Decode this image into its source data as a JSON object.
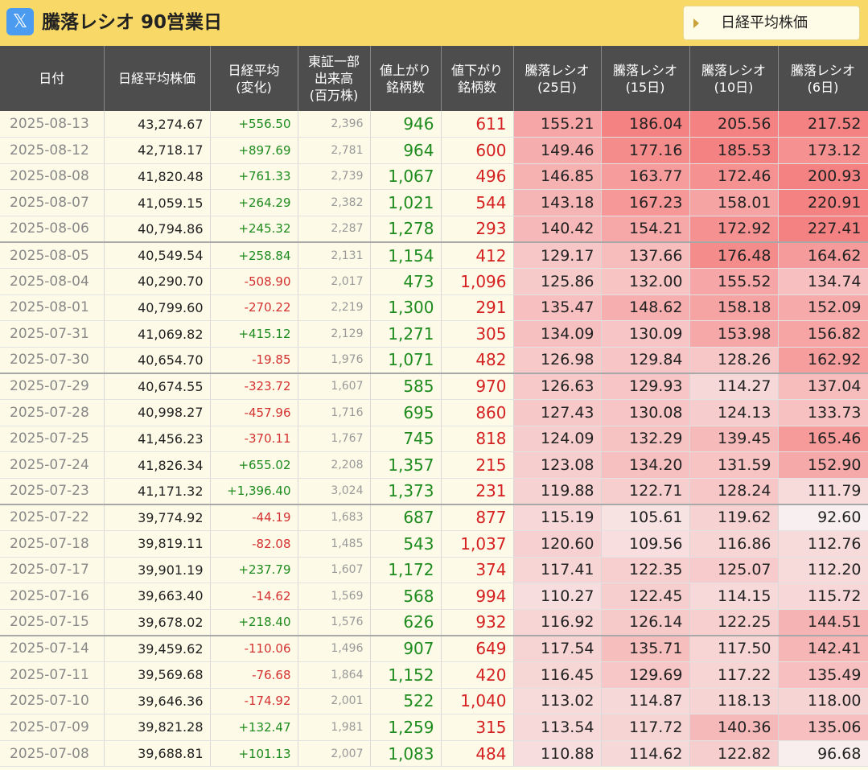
{
  "header": {
    "logo_icon": "x-logo-icon",
    "logo_glyph": "𝕏",
    "title": "騰落レシオ 90営業日",
    "nav_button_label": "日経平均株価"
  },
  "columns": [
    "日付",
    "日経平均株価",
    "日経平均\n(変化)",
    "東証一部\n出来高\n(百万株)",
    "値上がり\n銘柄数",
    "値下がり\n銘柄数",
    "騰落レシオ\n(25日)",
    "騰落レシオ\n(15日)",
    "騰落レシオ\n(10日)",
    "騰落レシオ\n(6日)"
  ],
  "colors": {
    "header_bg": "#4d4d4d",
    "topbar_bg": "#f8d967",
    "page_bg": "#fdfbe8",
    "up": "#1e8b1e",
    "down": "#d42020"
  },
  "rows": [
    {
      "date": "2025-08-13",
      "nikkei": "43,274.67",
      "change": "+556.50",
      "volume": "2,396",
      "up": "946",
      "down": "611",
      "r25": "155.21",
      "r15": "186.04",
      "r10": "205.56",
      "r6": "217.52"
    },
    {
      "date": "2025-08-12",
      "nikkei": "42,718.17",
      "change": "+897.69",
      "volume": "2,781",
      "up": "964",
      "down": "600",
      "r25": "149.46",
      "r15": "177.16",
      "r10": "185.53",
      "r6": "173.12"
    },
    {
      "date": "2025-08-08",
      "nikkei": "41,820.48",
      "change": "+761.33",
      "volume": "2,739",
      "up": "1,067",
      "down": "496",
      "r25": "146.85",
      "r15": "163.77",
      "r10": "172.46",
      "r6": "200.93"
    },
    {
      "date": "2025-08-07",
      "nikkei": "41,059.15",
      "change": "+264.29",
      "volume": "2,382",
      "up": "1,021",
      "down": "544",
      "r25": "143.18",
      "r15": "167.23",
      "r10": "158.01",
      "r6": "220.91"
    },
    {
      "date": "2025-08-06",
      "nikkei": "40,794.86",
      "change": "+245.32",
      "volume": "2,287",
      "up": "1,278",
      "down": "293",
      "r25": "140.42",
      "r15": "154.21",
      "r10": "172.92",
      "r6": "227.41"
    },
    {
      "date": "2025-08-05",
      "nikkei": "40,549.54",
      "change": "+258.84",
      "volume": "2,131",
      "up": "1,154",
      "down": "412",
      "r25": "129.17",
      "r15": "137.66",
      "r10": "176.48",
      "r6": "164.62"
    },
    {
      "date": "2025-08-04",
      "nikkei": "40,290.70",
      "change": "-508.90",
      "volume": "2,017",
      "up": "473",
      "down": "1,096",
      "r25": "125.86",
      "r15": "132.00",
      "r10": "155.52",
      "r6": "134.74"
    },
    {
      "date": "2025-08-01",
      "nikkei": "40,799.60",
      "change": "-270.22",
      "volume": "2,219",
      "up": "1,300",
      "down": "291",
      "r25": "135.47",
      "r15": "148.62",
      "r10": "158.18",
      "r6": "152.09"
    },
    {
      "date": "2025-07-31",
      "nikkei": "41,069.82",
      "change": "+415.12",
      "volume": "2,129",
      "up": "1,271",
      "down": "305",
      "r25": "134.09",
      "r15": "130.09",
      "r10": "153.98",
      "r6": "156.82"
    },
    {
      "date": "2025-07-30",
      "nikkei": "40,654.70",
      "change": "-19.85",
      "volume": "1,976",
      "up": "1,071",
      "down": "482",
      "r25": "126.98",
      "r15": "129.84",
      "r10": "128.26",
      "r6": "162.92"
    },
    {
      "date": "2025-07-29",
      "nikkei": "40,674.55",
      "change": "-323.72",
      "volume": "1,607",
      "up": "585",
      "down": "970",
      "r25": "126.63",
      "r15": "129.93",
      "r10": "114.27",
      "r6": "137.04"
    },
    {
      "date": "2025-07-28",
      "nikkei": "40,998.27",
      "change": "-457.96",
      "volume": "1,716",
      "up": "695",
      "down": "860",
      "r25": "127.43",
      "r15": "130.08",
      "r10": "124.13",
      "r6": "133.73"
    },
    {
      "date": "2025-07-25",
      "nikkei": "41,456.23",
      "change": "-370.11",
      "volume": "1,767",
      "up": "745",
      "down": "818",
      "r25": "124.09",
      "r15": "132.29",
      "r10": "139.45",
      "r6": "165.46"
    },
    {
      "date": "2025-07-24",
      "nikkei": "41,826.34",
      "change": "+655.02",
      "volume": "2,208",
      "up": "1,357",
      "down": "215",
      "r25": "123.08",
      "r15": "134.20",
      "r10": "131.59",
      "r6": "152.90"
    },
    {
      "date": "2025-07-23",
      "nikkei": "41,171.32",
      "change": "+1,396.40",
      "volume": "3,024",
      "up": "1,373",
      "down": "231",
      "r25": "119.88",
      "r15": "122.71",
      "r10": "128.24",
      "r6": "111.79"
    },
    {
      "date": "2025-07-22",
      "nikkei": "39,774.92",
      "change": "-44.19",
      "volume": "1,683",
      "up": "687",
      "down": "877",
      "r25": "115.19",
      "r15": "105.61",
      "r10": "119.62",
      "r6": "92.60"
    },
    {
      "date": "2025-07-18",
      "nikkei": "39,819.11",
      "change": "-82.08",
      "volume": "1,485",
      "up": "543",
      "down": "1,037",
      "r25": "120.60",
      "r15": "109.56",
      "r10": "116.86",
      "r6": "112.76"
    },
    {
      "date": "2025-07-17",
      "nikkei": "39,901.19",
      "change": "+237.79",
      "volume": "1,607",
      "up": "1,172",
      "down": "374",
      "r25": "117.41",
      "r15": "122.35",
      "r10": "125.07",
      "r6": "112.20"
    },
    {
      "date": "2025-07-16",
      "nikkei": "39,663.40",
      "change": "-14.62",
      "volume": "1,569",
      "up": "568",
      "down": "994",
      "r25": "110.27",
      "r15": "122.45",
      "r10": "114.15",
      "r6": "115.72"
    },
    {
      "date": "2025-07-15",
      "nikkei": "39,678.02",
      "change": "+218.40",
      "volume": "1,576",
      "up": "626",
      "down": "932",
      "r25": "116.92",
      "r15": "126.14",
      "r10": "122.25",
      "r6": "144.51"
    },
    {
      "date": "2025-07-14",
      "nikkei": "39,459.62",
      "change": "-110.06",
      "volume": "1,496",
      "up": "907",
      "down": "649",
      "r25": "117.54",
      "r15": "135.71",
      "r10": "117.50",
      "r6": "142.41"
    },
    {
      "date": "2025-07-11",
      "nikkei": "39,569.68",
      "change": "-76.68",
      "volume": "1,864",
      "up": "1,152",
      "down": "420",
      "r25": "116.45",
      "r15": "129.69",
      "r10": "117.22",
      "r6": "135.49"
    },
    {
      "date": "2025-07-10",
      "nikkei": "39,646.36",
      "change": "-174.92",
      "volume": "2,001",
      "up": "522",
      "down": "1,040",
      "r25": "113.02",
      "r15": "114.87",
      "r10": "118.13",
      "r6": "118.00"
    },
    {
      "date": "2025-07-09",
      "nikkei": "39,821.28",
      "change": "+132.47",
      "volume": "1,981",
      "up": "1,259",
      "down": "315",
      "r25": "113.54",
      "r15": "117.72",
      "r10": "140.36",
      "r6": "135.06"
    },
    {
      "date": "2025-07-08",
      "nikkei": "39,688.81",
      "change": "+101.13",
      "volume": "2,007",
      "up": "1,083",
      "down": "484",
      "r25": "110.88",
      "r15": "114.62",
      "r10": "122.82",
      "r6": "96.68"
    }
  ]
}
